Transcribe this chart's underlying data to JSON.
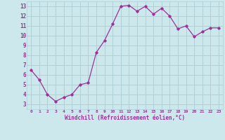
{
  "x": [
    0,
    1,
    2,
    3,
    4,
    5,
    6,
    7,
    8,
    9,
    10,
    11,
    12,
    13,
    14,
    15,
    16,
    17,
    18,
    19,
    20,
    21,
    22,
    23
  ],
  "y": [
    6.5,
    5.5,
    4.0,
    3.3,
    3.7,
    4.0,
    5.0,
    5.2,
    8.3,
    9.5,
    11.2,
    13.0,
    13.1,
    12.5,
    13.0,
    12.2,
    12.8,
    12.0,
    10.7,
    11.0,
    9.9,
    10.4,
    10.8,
    10.8
  ],
  "xlim": [
    -0.5,
    23.5
  ],
  "ylim": [
    2.5,
    13.5
  ],
  "yticks": [
    3,
    4,
    5,
    6,
    7,
    8,
    9,
    10,
    11,
    12,
    13
  ],
  "xtick_labels": [
    "0",
    "1",
    "2",
    "3",
    "4",
    "5",
    "6",
    "7",
    "8",
    "9",
    "10",
    "11",
    "12",
    "13",
    "14",
    "15",
    "16",
    "17",
    "18",
    "19",
    "20",
    "21",
    "22",
    "23"
  ],
  "xlabel": "Windchill (Refroidissement éolien,°C)",
  "line_color": "#993399",
  "marker": "D",
  "marker_size": 1.8,
  "bg_color": "#cce8ec",
  "grid_color": "#b0d0d8",
  "tick_color": "#993399",
  "label_color": "#993399",
  "figsize": [
    3.2,
    2.0
  ],
  "dpi": 100
}
